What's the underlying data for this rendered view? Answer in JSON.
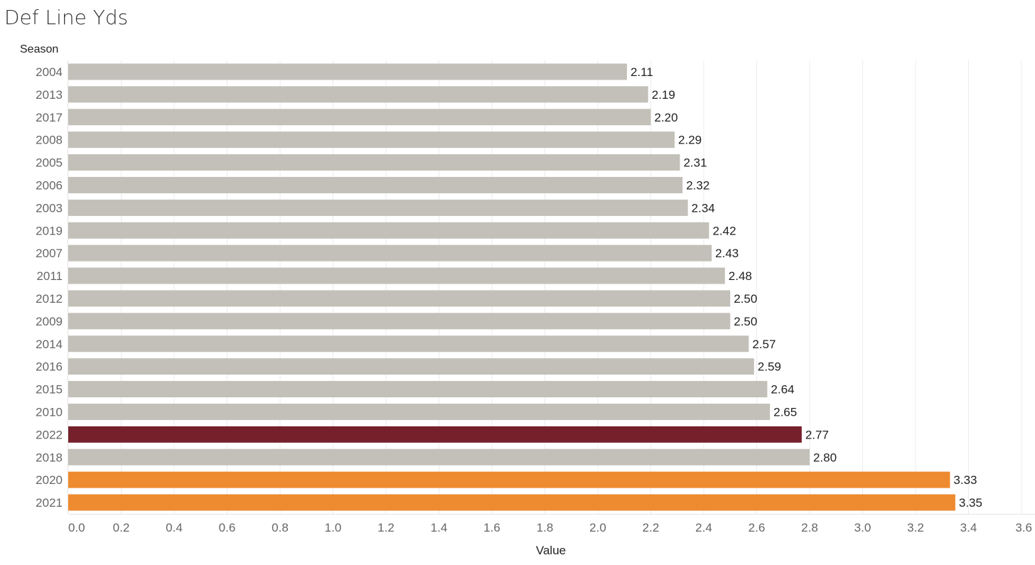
{
  "chart_data": {
    "type": "bar",
    "orientation": "horizontal",
    "title": "Def Line Yds",
    "row_header": "Season",
    "xlabel": "Value",
    "ylabel": "",
    "xlim": [
      0,
      3.6
    ],
    "x_ticks": [
      "0.0",
      "0.2",
      "0.4",
      "0.6",
      "0.8",
      "1.0",
      "1.2",
      "1.4",
      "1.6",
      "1.8",
      "2.0",
      "2.2",
      "2.4",
      "2.6",
      "2.8",
      "3.0",
      "3.2",
      "3.4",
      "3.6"
    ],
    "grid": true,
    "categories": [
      "2004",
      "2013",
      "2017",
      "2008",
      "2005",
      "2006",
      "2003",
      "2019",
      "2007",
      "2011",
      "2012",
      "2009",
      "2014",
      "2016",
      "2015",
      "2010",
      "2022",
      "2018",
      "2020",
      "2021"
    ],
    "values": [
      2.11,
      2.19,
      2.2,
      2.29,
      2.31,
      2.32,
      2.34,
      2.42,
      2.43,
      2.48,
      2.5,
      2.5,
      2.57,
      2.59,
      2.64,
      2.65,
      2.77,
      2.8,
      3.33,
      3.35
    ],
    "value_labels": [
      "2.11",
      "2.19",
      "2.20",
      "2.29",
      "2.31",
      "2.32",
      "2.34",
      "2.42",
      "2.43",
      "2.48",
      "2.50",
      "2.50",
      "2.57",
      "2.59",
      "2.64",
      "2.65",
      "2.77",
      "2.80",
      "3.33",
      "3.35"
    ],
    "colors": [
      "#c2c0b8",
      "#c2c0b8",
      "#c2c0b8",
      "#c2c0b8",
      "#c2c0b8",
      "#c2c0b8",
      "#c2c0b8",
      "#c2c0b8",
      "#c2c0b8",
      "#c2c0b8",
      "#c2c0b8",
      "#c2c0b8",
      "#c2c0b8",
      "#c2c0b8",
      "#c2c0b8",
      "#c2c0b8",
      "#76202b",
      "#c2c0b8",
      "#ee8a2f",
      "#ee8a2f"
    ]
  }
}
